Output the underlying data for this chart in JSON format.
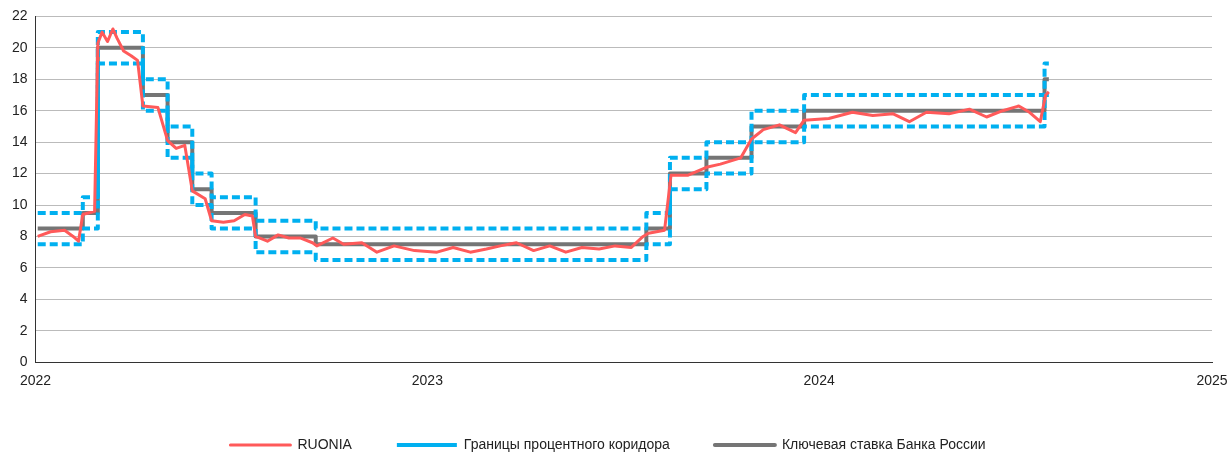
{
  "chart_data": {
    "type": "line",
    "xlim": [
      "2022",
      "2025"
    ],
    "xticks": [
      "2022",
      "2023",
      "2024",
      "2025"
    ],
    "ylim": [
      0,
      22
    ],
    "yticks": [
      0,
      2,
      4,
      6,
      8,
      10,
      12,
      14,
      16,
      18,
      20,
      22
    ],
    "grid": "y",
    "legend": "bottom",
    "marker": "none",
    "series": [
      {
        "name": "RUONIA",
        "type": "line",
        "color": "#ff5a5a",
        "line_style": "solid",
        "x": [
          "2022-01-03",
          "2022-01-15",
          "2022-01-28",
          "2022-02-05",
          "2022-02-10",
          "2022-02-14",
          "2022-02-25",
          "2022-02-28",
          "2022-03-04",
          "2022-03-09",
          "2022-03-14",
          "2022-03-18",
          "2022-03-24",
          "2022-03-31",
          "2022-04-06",
          "2022-04-11",
          "2022-04-25",
          "2022-05-04",
          "2022-05-12",
          "2022-05-20",
          "2022-05-27",
          "2022-06-08",
          "2022-06-14",
          "2022-06-25",
          "2022-07-05",
          "2022-07-15",
          "2022-07-22",
          "2022-07-25",
          "2022-08-05",
          "2022-08-15",
          "2022-08-25",
          "2022-09-05",
          "2022-09-16",
          "2022-09-20",
          "2022-10-05",
          "2022-10-15",
          "2022-11-01",
          "2022-11-15",
          "2022-12-01",
          "2022-12-20",
          "2023-01-10",
          "2023-01-25",
          "2023-02-10",
          "2023-02-25",
          "2023-03-10",
          "2023-03-25",
          "2023-04-10",
          "2023-04-25",
          "2023-05-10",
          "2023-05-25",
          "2023-06-10",
          "2023-06-25",
          "2023-07-10",
          "2023-07-21",
          "2023-07-26",
          "2023-08-10",
          "2023-08-16",
          "2023-09-01",
          "2023-09-18",
          "2023-10-01",
          "2023-10-20",
          "2023-10-30",
          "2023-11-10",
          "2023-11-25",
          "2023-12-10",
          "2023-12-18",
          "2024-01-10",
          "2024-02-01",
          "2024-02-20",
          "2024-03-10",
          "2024-03-25",
          "2024-04-10",
          "2024-05-01",
          "2024-05-20",
          "2024-06-05",
          "2024-06-20",
          "2024-07-05",
          "2024-07-15",
          "2024-07-25",
          "2024-07-30",
          "2024-08-02"
        ],
        "values": [
          8.0,
          8.3,
          8.4,
          8.0,
          7.7,
          9.4,
          9.6,
          20.3,
          21.0,
          20.4,
          21.2,
          20.6,
          19.8,
          19.5,
          19.2,
          16.3,
          16.2,
          14.1,
          13.6,
          13.8,
          10.9,
          10.4,
          9.0,
          8.9,
          9.0,
          9.4,
          9.3,
          8.0,
          7.7,
          8.1,
          7.9,
          7.9,
          7.6,
          7.4,
          7.9,
          7.5,
          7.6,
          7.0,
          7.4,
          7.1,
          7.0,
          7.3,
          7.0,
          7.2,
          7.4,
          7.6,
          7.1,
          7.4,
          7.0,
          7.3,
          7.2,
          7.4,
          7.3,
          8.0,
          8.2,
          8.4,
          11.9,
          11.9,
          12.4,
          12.6,
          13.0,
          14.2,
          14.8,
          15.1,
          14.6,
          15.4,
          15.5,
          15.9,
          15.7,
          15.8,
          15.3,
          15.9,
          15.8,
          16.1,
          15.6,
          16.0,
          16.3,
          15.9,
          15.3,
          17.0,
          17.2
        ]
      },
      {
        "name": "Границы процентного коридора",
        "type": "step",
        "color": "#00b0f0",
        "line_style": "dashed",
        "x": [
          "2022-01-03",
          "2022-02-14",
          "2022-02-28",
          "2022-04-11",
          "2022-05-04",
          "2022-05-27",
          "2022-06-14",
          "2022-07-25",
          "2022-09-19",
          "2023-07-24",
          "2023-08-15",
          "2023-09-18",
          "2023-10-30",
          "2023-12-18",
          "2024-07-29",
          "2024-08-02"
        ],
        "values": [
          9.5,
          10.5,
          21,
          18,
          15,
          12,
          10.5,
          9,
          8.5,
          9.5,
          13,
          14,
          16,
          17,
          19,
          19
        ]
      },
      {
        "type": "step",
        "color": "#00b0f0",
        "line_style": "dashed",
        "x": [
          "2022-01-03",
          "2022-02-14",
          "2022-02-28",
          "2022-04-11",
          "2022-05-04",
          "2022-05-27",
          "2022-06-14",
          "2022-07-25",
          "2022-09-19",
          "2023-07-24",
          "2023-08-15",
          "2023-09-18",
          "2023-10-30",
          "2023-12-18",
          "2024-07-29",
          "2024-08-02"
        ],
        "values": [
          7.5,
          8.5,
          19,
          16,
          13,
          10,
          8.5,
          7,
          6.5,
          7.5,
          11,
          12,
          14,
          15,
          17,
          17
        ]
      },
      {
        "name": "Ключевая ставка Банка России",
        "type": "step",
        "color": "#757575",
        "line_style": "solid",
        "x": [
          "2022-01-03",
          "2022-02-14",
          "2022-02-28",
          "2022-04-11",
          "2022-05-04",
          "2022-05-27",
          "2022-06-14",
          "2022-07-25",
          "2022-09-19",
          "2023-07-24",
          "2023-08-15",
          "2023-09-18",
          "2023-10-30",
          "2023-12-18",
          "2024-07-29",
          "2024-08-02"
        ],
        "values": [
          8.5,
          9.5,
          20,
          17,
          14,
          11,
          9.5,
          8,
          7.5,
          8.5,
          12,
          13,
          15,
          16,
          18,
          18
        ]
      }
    ]
  }
}
